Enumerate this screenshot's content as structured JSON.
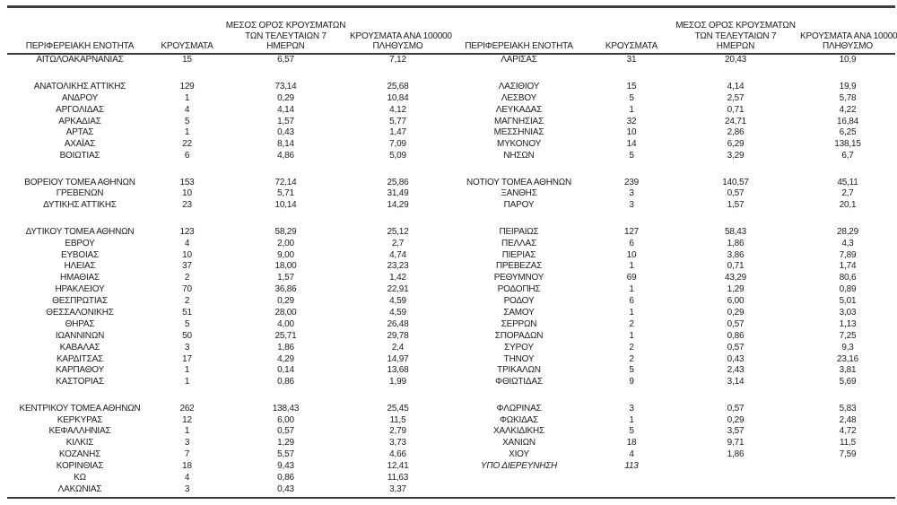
{
  "colors": {
    "background": "#ffffff",
    "text": "#1c1c1c",
    "rule": "#3c3c3c"
  },
  "table": {
    "headers": {
      "region": "ΠΕΡΙΦΕΡΕΙΑΚΗ ΕΝΟΤΗΤΑ",
      "cases": "ΚΡΟΥΣΜΑΤΑ",
      "avg7_line1": "ΜΕΣΟΣ ΟΡΟΣ ΚΡΟΥΣΜΑΤΩΝ",
      "avg7_line2": "ΤΩΝ ΤΕΛΕΥΤΑΙΩΝ 7",
      "avg7_line3": "ΗΜΕΡΩΝ",
      "per100k_line1": "ΚΡΟΥΣΜΑΤΑ ΑΝΑ 100000",
      "per100k_line2": "ΠΛΗΘΥΣΜΟ"
    },
    "rows": [
      {
        "left": [
          "ΑΙΤΩΛΟΑΚΑΡΝΑΝΙΑΣ",
          "15",
          "6,57",
          "7,12"
        ],
        "right": [
          "ΛΑΡΙΣΑΣ",
          "31",
          "20,43",
          "10,9"
        ]
      },
      {
        "blank": true
      },
      {
        "left": [
          "ΑΝΑΤΟΛΙΚΗΣ ΑΤΤΙΚΗΣ",
          "129",
          "73,14",
          "25,68"
        ],
        "right": [
          "ΛΑΣΙΘΙΟΥ",
          "15",
          "4,14",
          "19,9"
        ]
      },
      {
        "left": [
          "ΑΝΔΡΟΥ",
          "1",
          "0,29",
          "10,84"
        ],
        "right": [
          "ΛΕΣΒΟΥ",
          "5",
          "2,57",
          "5,78"
        ]
      },
      {
        "left": [
          "ΑΡΓΟΛΙΔΑΣ",
          "4",
          "4,14",
          "4,12"
        ],
        "right": [
          "ΛΕΥΚΑΔΑΣ",
          "1",
          "0,71",
          "4,22"
        ]
      },
      {
        "left": [
          "ΑΡΚΑΔΙΑΣ",
          "5",
          "1,57",
          "5,77"
        ],
        "right": [
          "ΜΑΓΝΗΣΙΑΣ",
          "32",
          "24,71",
          "16,84"
        ]
      },
      {
        "left": [
          "ΑΡΤΑΣ",
          "1",
          "0,43",
          "1,47"
        ],
        "right": [
          "ΜΕΣΣΗΝΙΑΣ",
          "10",
          "2,86",
          "6,25"
        ]
      },
      {
        "left": [
          "ΑΧΑΪΑΣ",
          "22",
          "8,14",
          "7,09"
        ],
        "right": [
          "ΜΥΚΟΝΟΥ",
          "14",
          "6,29",
          "138,15"
        ]
      },
      {
        "left": [
          "ΒΟΙΩΤΙΑΣ",
          "6",
          "4,86",
          "5,09"
        ],
        "right": [
          "ΝΗΣΩΝ",
          "5",
          "3,29",
          "6,7"
        ]
      },
      {
        "blank": true
      },
      {
        "left": [
          "ΒΟΡΕΙΟΥ ΤΟΜΕΑ ΑΘΗΝΩΝ",
          "153",
          "72,14",
          "25,86"
        ],
        "right": [
          "ΝΟΤΙΟΥ ΤΟΜΕΑ ΑΘΗΝΩΝ",
          "239",
          "140,57",
          "45,11"
        ]
      },
      {
        "left": [
          "ΓΡΕΒΕΝΩΝ",
          "10",
          "5,71",
          "31,49"
        ],
        "right": [
          "ΞΑΝΘΗΣ",
          "3",
          "0,57",
          "2,7"
        ]
      },
      {
        "left": [
          "ΔΥΤΙΚΗΣ ΑΤΤΙΚΗΣ",
          "23",
          "10,14",
          "14,29"
        ],
        "right": [
          "ΠΑΡΟΥ",
          "3",
          "1,57",
          "20,1"
        ]
      },
      {
        "blank": true
      },
      {
        "left": [
          "ΔΥΤΙΚΟΥ ΤΟΜΕΑ ΑΘΗΝΩΝ",
          "123",
          "58,29",
          "25,12"
        ],
        "right": [
          "ΠΕΙΡΑΙΩΣ",
          "127",
          "58,43",
          "28,29"
        ]
      },
      {
        "left": [
          "ΕΒΡΟΥ",
          "4",
          "2,00",
          "2,7"
        ],
        "right": [
          "ΠΕΛΛΑΣ",
          "6",
          "1,86",
          "4,3"
        ]
      },
      {
        "left": [
          "ΕΥΒΟΙΑΣ",
          "10",
          "9,00",
          "4,74"
        ],
        "right": [
          "ΠΙΕΡΙΑΣ",
          "10",
          "3,86",
          "7,89"
        ]
      },
      {
        "left": [
          "ΗΛΕΙΑΣ",
          "37",
          "18,00",
          "23,23"
        ],
        "right": [
          "ΠΡΕΒΕΖΑΣ",
          "1",
          "0,71",
          "1,74"
        ]
      },
      {
        "left": [
          "ΗΜΑΘΙΑΣ",
          "2",
          "1,57",
          "1,42"
        ],
        "right": [
          "ΡΕΘΥΜΝΟΥ",
          "69",
          "43,29",
          "80,6"
        ]
      },
      {
        "left": [
          "ΗΡΑΚΛΕΙΟΥ",
          "70",
          "36,86",
          "22,91"
        ],
        "right": [
          "ΡΟΔΟΠΗΣ",
          "1",
          "1,29",
          "0,89"
        ]
      },
      {
        "left": [
          "ΘΕΣΠΡΩΤΙΑΣ",
          "2",
          "0,29",
          "4,59"
        ],
        "right": [
          "ΡΟΔΟΥ",
          "6",
          "6,00",
          "5,01"
        ]
      },
      {
        "left": [
          "ΘΕΣΣΑΛΟΝΙΚΗΣ",
          "51",
          "28,00",
          "4,59"
        ],
        "right": [
          "ΣΑΜΟΥ",
          "1",
          "0,29",
          "3,03"
        ]
      },
      {
        "left": [
          "ΘΗΡΑΣ",
          "5",
          "4,00",
          "26,48"
        ],
        "right": [
          "ΣΕΡΡΩΝ",
          "2",
          "0,57",
          "1,13"
        ]
      },
      {
        "left": [
          "ΙΩΑΝΝΙΝΩΝ",
          "50",
          "25,71",
          "29,78"
        ],
        "right": [
          "ΣΠΟΡΑΔΩΝ",
          "1",
          "0,86",
          "7,25"
        ]
      },
      {
        "left": [
          "ΚΑΒΑΛΑΣ",
          "3",
          "1,86",
          "2,4"
        ],
        "right": [
          "ΣΥΡΟΥ",
          "2",
          "0,57",
          "9,3"
        ]
      },
      {
        "left": [
          "ΚΑΡΔΙΤΣΑΣ",
          "17",
          "4,29",
          "14,97"
        ],
        "right": [
          "ΤΗΝΟΥ",
          "2",
          "0,43",
          "23,16"
        ]
      },
      {
        "left": [
          "ΚΑΡΠΑΘΟΥ",
          "1",
          "0,14",
          "13,68"
        ],
        "right": [
          "ΤΡΙΚΑΛΩΝ",
          "5",
          "2,43",
          "3,81"
        ]
      },
      {
        "left": [
          "ΚΑΣΤΟΡΙΑΣ",
          "1",
          "0,86",
          "1,99"
        ],
        "right": [
          "ΦΘΙΩΤΙΔΑΣ",
          "9",
          "3,14",
          "5,69"
        ]
      },
      {
        "blank": true
      },
      {
        "left": [
          "ΚΕΝΤΡΙΚΟΥ ΤΟΜΕΑ ΑΘΗΝΩΝ",
          "262",
          "138,43",
          "25,45"
        ],
        "right": [
          "ΦΛΩΡΙΝΑΣ",
          "3",
          "0,57",
          "5,83"
        ]
      },
      {
        "left": [
          "ΚΕΡΚΥΡΑΣ",
          "12",
          "6,00",
          "11,5"
        ],
        "right": [
          "ΦΩΚΙΔΑΣ",
          "1",
          "0,29",
          "2,48"
        ]
      },
      {
        "left": [
          "ΚΕΦΑΛΛΗΝΙΑΣ",
          "1",
          "0,57",
          "2,79"
        ],
        "right": [
          "ΧΑΛΚΙΔΙΚΗΣ",
          "5",
          "3,57",
          "4,72"
        ]
      },
      {
        "left": [
          "ΚΙΛΚΙΣ",
          "3",
          "1,29",
          "3,73"
        ],
        "right": [
          "ΧΑΝΙΩΝ",
          "18",
          "9,71",
          "11,5"
        ]
      },
      {
        "left": [
          "ΚΟΖΑΝΗΣ",
          "7",
          "5,57",
          "4,66"
        ],
        "right": [
          "ΧΙΟΥ",
          "4",
          "1,86",
          "7,59"
        ]
      },
      {
        "left": [
          "ΚΟΡΙΝΘΙΑΣ",
          "18",
          "9,43",
          "12,41"
        ],
        "right": [
          "ΥΠΟ ΔΙΕΡΕΥΝΗΣΗ",
          "113",
          "",
          ""
        ],
        "right_italic": true
      },
      {
        "left": [
          "ΚΩ",
          "4",
          "0,86",
          "11,63"
        ],
        "right": [
          "",
          "",
          "",
          ""
        ]
      },
      {
        "left": [
          "ΛΑΚΩΝΙΑΣ",
          "3",
          "0,43",
          "3,37"
        ],
        "right": [
          "",
          "",
          "",
          ""
        ]
      }
    ]
  }
}
